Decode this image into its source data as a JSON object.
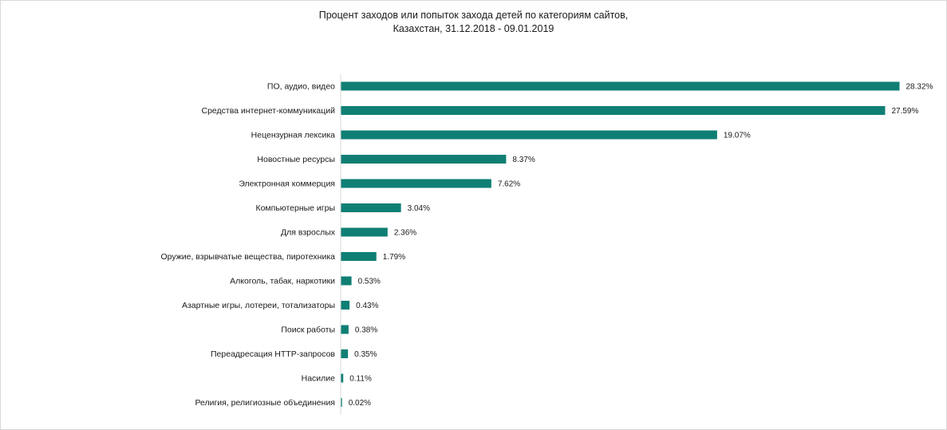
{
  "chart_data": {
    "type": "bar",
    "orientation": "horizontal",
    "title": "Процент заходов или попыток захода детей по категориям сайтов,",
    "subtitle": "Казахстан, 31.12.2018 - 09.01.2019",
    "xlabel": "",
    "ylabel": "",
    "grid": false,
    "legend": "none",
    "bar_color": "#0f7f74",
    "xlim": [
      0,
      28.32
    ],
    "categories": [
      "ПО, аудио, видео",
      "Средства интернет-коммуникаций",
      "Нецензурная лексика",
      "Новостные ресурсы",
      "Электронная коммерция",
      "Компьютерные игры",
      "Для взрослых",
      "Оружие, взрывчатые вещества, пиротехника",
      "Алкоголь, табак, наркотики",
      "Азартные игры, лотереи, тотализаторы",
      "Поиск работы",
      "Переадресация HTTP-запросов",
      "Насилие",
      "Религия, религиозные объединения"
    ],
    "values": [
      28.32,
      27.59,
      19.07,
      8.37,
      7.62,
      3.04,
      2.36,
      1.79,
      0.53,
      0.43,
      0.38,
      0.35,
      0.11,
      0.02
    ],
    "value_labels": [
      "28.32%",
      "27.59%",
      "19.07%",
      "8.37%",
      "7.62%",
      "3.04%",
      "2.36%",
      "1.79%",
      "0.53%",
      "0.43%",
      "0.38%",
      "0.35%",
      "0.11%",
      "0.02%"
    ]
  }
}
